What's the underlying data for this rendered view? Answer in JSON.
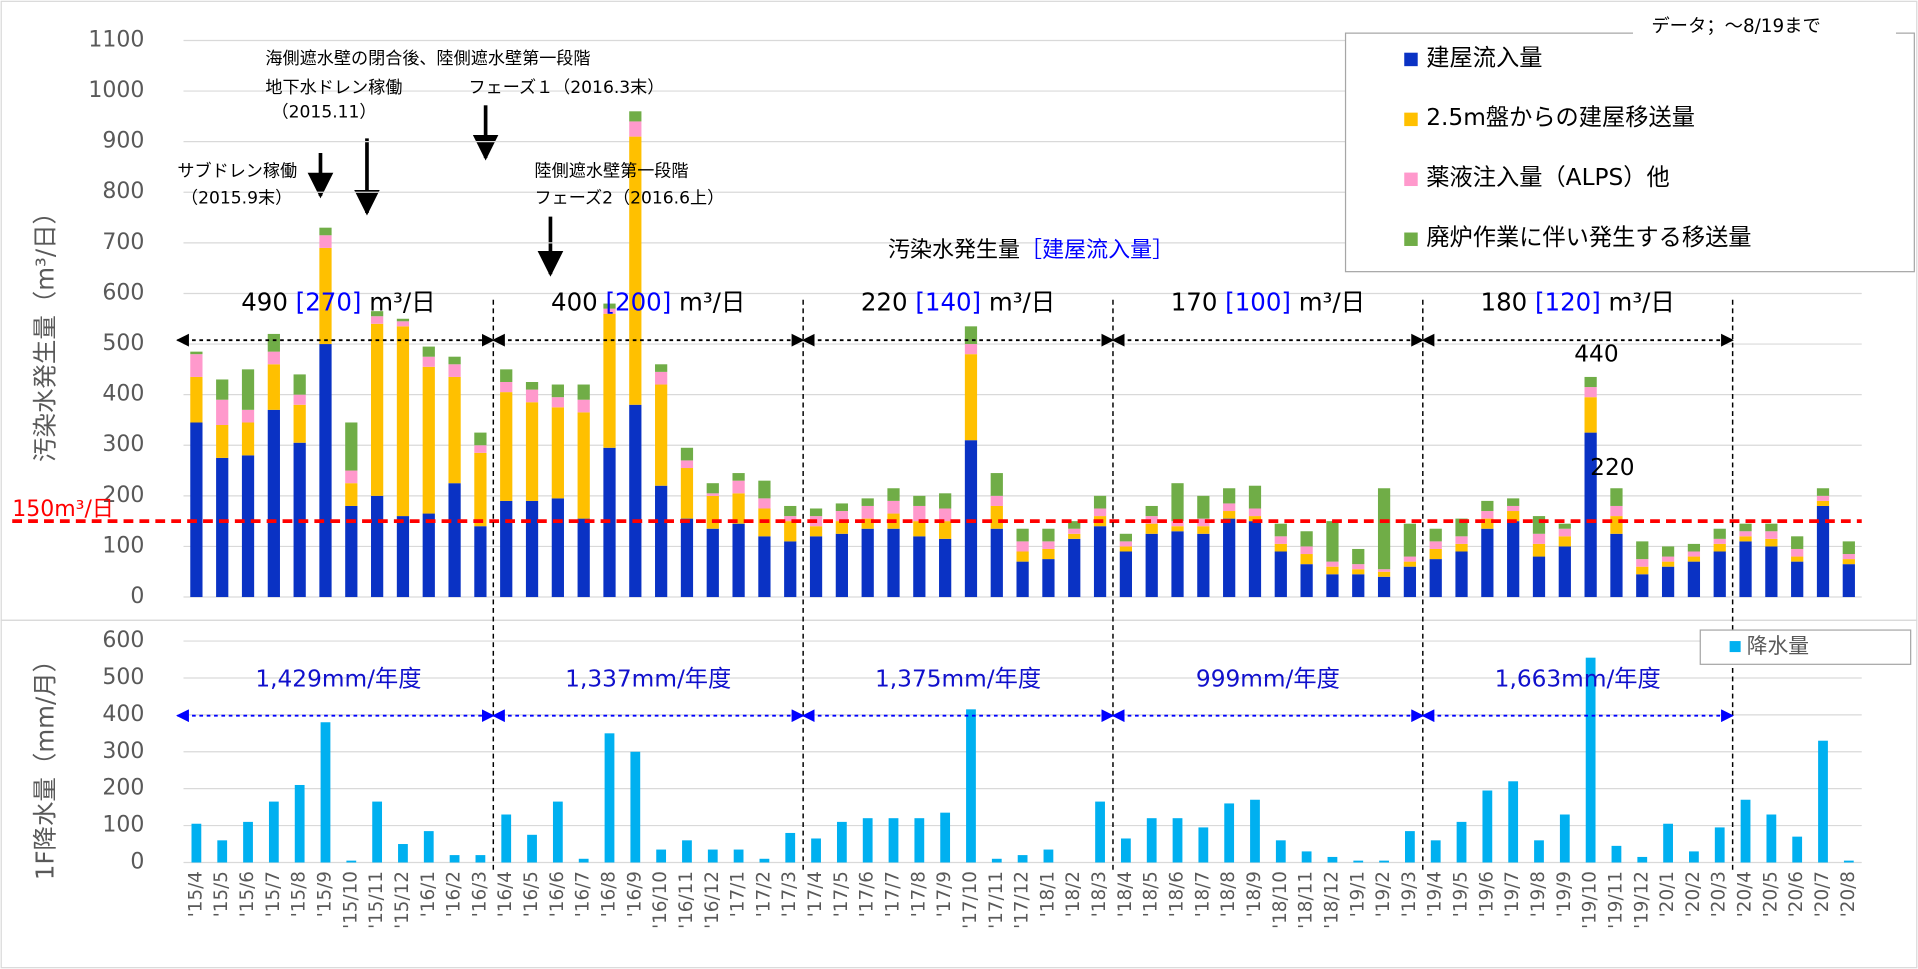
{
  "chart_data": [
    {
      "type": "stacked_bar",
      "y_label": "汚染水発生量（m³/日）",
      "categories": [
        "'15/4",
        "'15/5",
        "'15/6",
        "'15/7",
        "'15/8",
        "'15/9",
        "'15/10",
        "'15/11",
        "'15/12",
        "'16/1",
        "'16/2",
        "'16/3",
        "'16/4",
        "'16/5",
        "'16/6",
        "'16/7",
        "'16/8",
        "'16/9",
        "'16/10",
        "'16/11",
        "'16/12",
        "'17/1",
        "'17/2",
        "'17/3",
        "'17/4",
        "'17/5",
        "'17/6",
        "'17/7",
        "'17/8",
        "'17/9",
        "'17/10",
        "'17/11",
        "'17/12",
        "'18/1",
        "'18/2",
        "'18/3",
        "'18/4",
        "'18/5",
        "'18/6",
        "'18/7",
        "'18/8",
        "'18/9",
        "'18/10",
        "'18/11",
        "'18/12",
        "'19/1",
        "'19/2",
        "'19/3",
        "'19/4",
        "'19/5",
        "'19/6",
        "'19/7",
        "'19/8",
        "'19/9",
        "'19/10",
        "'19/11",
        "'19/12",
        "'20/1",
        "'20/2",
        "'20/3",
        "'20/4",
        "'20/5",
        "'20/6",
        "'20/7",
        "'20/8"
      ],
      "series": [
        {
          "name": "建屋流入量",
          "color": "#0a32c4",
          "values": [
            345,
            275,
            280,
            370,
            305,
            500,
            180,
            200,
            160,
            165,
            225,
            140,
            190,
            190,
            195,
            155,
            295,
            380,
            220,
            155,
            135,
            145,
            120,
            110,
            120,
            125,
            135,
            135,
            120,
            115,
            310,
            135,
            70,
            75,
            115,
            140,
            90,
            125,
            130,
            125,
            155,
            150,
            90,
            65,
            45,
            45,
            40,
            60,
            75,
            90,
            135,
            150,
            80,
            100,
            325,
            125,
            45,
            60,
            70,
            90,
            110,
            100,
            70,
            180,
            65
          ]
        },
        {
          "name": "2.5m盤からの建屋移送量",
          "color": "#ffc000",
          "values": [
            90,
            65,
            65,
            90,
            75,
            190,
            45,
            340,
            375,
            290,
            210,
            145,
            215,
            195,
            180,
            210,
            265,
            530,
            200,
            100,
            65,
            60,
            55,
            40,
            20,
            25,
            20,
            30,
            30,
            35,
            170,
            45,
            20,
            20,
            10,
            20,
            10,
            20,
            10,
            15,
            15,
            10,
            15,
            20,
            15,
            10,
            10,
            10,
            20,
            15,
            20,
            20,
            25,
            20,
            70,
            35,
            15,
            10,
            10,
            15,
            10,
            15,
            10,
            10,
            10
          ]
        },
        {
          "name": "薬液注入量（ALPS）他",
          "color": "#ff99cc",
          "values": [
            45,
            50,
            25,
            25,
            20,
            25,
            25,
            15,
            10,
            20,
            25,
            15,
            20,
            25,
            20,
            25,
            10,
            30,
            25,
            15,
            5,
            25,
            20,
            10,
            20,
            20,
            25,
            25,
            30,
            25,
            20,
            20,
            20,
            15,
            10,
            15,
            10,
            15,
            10,
            15,
            15,
            15,
            15,
            15,
            10,
            10,
            5,
            10,
            15,
            15,
            15,
            10,
            20,
            15,
            20,
            20,
            15,
            10,
            10,
            10,
            10,
            15,
            15,
            10,
            10
          ]
        },
        {
          "name": "廃炉作業に伴い発生する移送量",
          "color": "#70ad47",
          "values": [
            5,
            40,
            80,
            35,
            40,
            15,
            95,
            10,
            5,
            20,
            15,
            25,
            25,
            15,
            25,
            30,
            10,
            20,
            15,
            25,
            20,
            15,
            35,
            20,
            15,
            15,
            15,
            25,
            20,
            30,
            35,
            45,
            25,
            25,
            15,
            25,
            15,
            20,
            75,
            45,
            30,
            45,
            25,
            30,
            80,
            30,
            160,
            65,
            25,
            35,
            20,
            15,
            35,
            10,
            20,
            35,
            35,
            20,
            15,
            20,
            15,
            15,
            25,
            15,
            25
          ]
        }
      ],
      "ylim": [
        0,
        1100
      ],
      "yticks": [
        0,
        100,
        200,
        300,
        400,
        500,
        600,
        700,
        800,
        900,
        1000,
        1100
      ],
      "grid": true,
      "reference_line": {
        "value": 150,
        "label": "150m³/日",
        "color": "#ff0000"
      },
      "period_title": "汚染水発生量",
      "period_title_bracket": "［建屋流入量］",
      "period_unit": "m³/日",
      "periods": [
        {
          "total": 490,
          "inflow_label": "[270]"
        },
        {
          "total": 400,
          "inflow_label": "[200]"
        },
        {
          "total": 220,
          "inflow_label": "[140]"
        },
        {
          "total": 170,
          "inflow_label": "[100]"
        },
        {
          "total": 180,
          "inflow_label": "[120]"
        }
      ],
      "annotations": [
        "海側遮水壁の閉合後、陸側遮水壁第一段階",
        "地下水ドレン稼働",
        "（2015.11）",
        "フェーズ１（2016.3末）",
        "サブドレン稼働",
        "（2015.9末）",
        "陸側遮水壁第一段階",
        "フェーズ2（2016.6上）",
        "440",
        "220"
      ],
      "note": "データ；～8/19まで"
    },
    {
      "type": "bar",
      "y_label": "1F降水量（mm/月）",
      "series": [
        {
          "name": "降水量",
          "color": "#00b0f0",
          "values": [
            105,
            60,
            110,
            165,
            210,
            380,
            5,
            165,
            50,
            85,
            20,
            20,
            130,
            75,
            165,
            10,
            350,
            300,
            35,
            60,
            35,
            35,
            10,
            80,
            65,
            110,
            120,
            120,
            120,
            135,
            415,
            10,
            20,
            35,
            0,
            165,
            65,
            120,
            120,
            95,
            160,
            170,
            60,
            30,
            15,
            5,
            5,
            85,
            60,
            110,
            195,
            220,
            60,
            130,
            555,
            45,
            15,
            105,
            30,
            95,
            170,
            130,
            70,
            330,
            5
          ]
        }
      ],
      "ylim": [
        0,
        600
      ],
      "yticks": [
        0,
        100,
        200,
        300,
        400,
        500,
        600
      ],
      "grid": true,
      "periods": [
        "1,429mm/年度",
        "1,337mm/年度",
        "1,375mm/年度",
        "999mm/年度",
        "1,663mm/年度"
      ]
    }
  ]
}
